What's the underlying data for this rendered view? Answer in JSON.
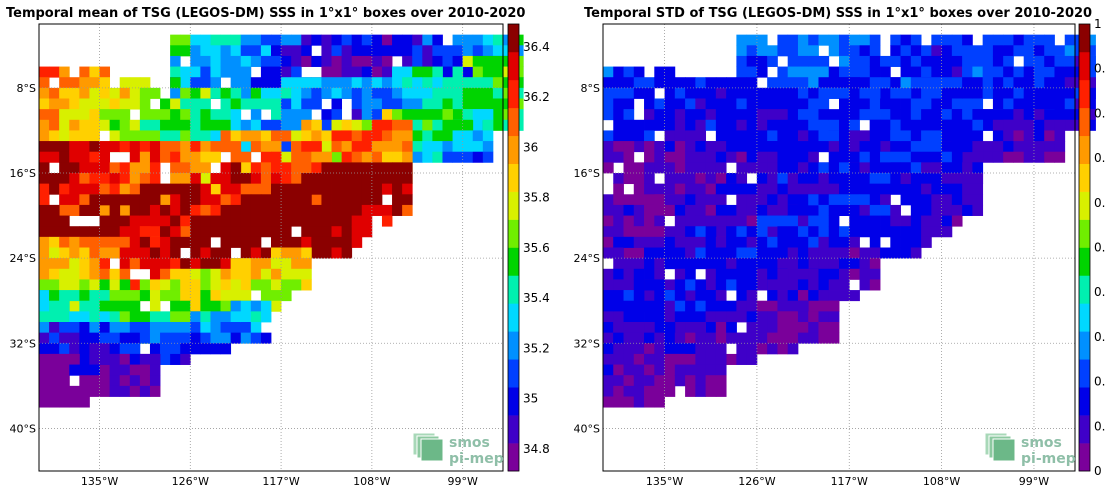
{
  "chart_data": [
    {
      "type": "heatmap",
      "title": "Temporal mean of TSG (LEGOS-DM) SSS in 1°x1° boxes over 2010-2020",
      "xticks": [
        "135°W",
        "126°W",
        "117°W",
        "108°W",
        "99°W"
      ],
      "yticks": [
        "8°S",
        "16°S",
        "24°S",
        "32°S",
        "40°S"
      ],
      "xlim": [
        -141,
        -95
      ],
      "ylim": [
        -44,
        -2
      ],
      "grid": true,
      "colorbar": {
        "ticks": [
          "34.8",
          "35",
          "35.2",
          "35.4",
          "35.6",
          "35.8",
          "36",
          "36.2",
          "36.4"
        ],
        "range": [
          34.8,
          36.6
        ],
        "colors": [
          "#7a009a",
          "#3f00c8",
          "#0000e8",
          "#0040ff",
          "#0090ff",
          "#00d8ff",
          "#00f0b0",
          "#00d400",
          "#70ee00",
          "#d8f000",
          "#ffd000",
          "#ff9a00",
          "#ff6000",
          "#ff2000",
          "#e00000",
          "#8b0000"
        ]
      },
      "bands": [
        {
          "lon": [
            -128,
            -105,
            -93
          ],
          "lat_top": [
            -4,
            -3,
            -4
          ],
          "lat_bot": [
            -8,
            -9,
            -8
          ],
          "values_w_to_e": [
            35.5,
            35.3,
            35.0,
            34.95,
            35.1,
            35.4
          ]
        },
        {
          "lon": [
            -141,
            -124,
            -106,
            -93
          ],
          "lat_top": [
            -6,
            -8.5,
            -7,
            -5
          ],
          "lat_bot": [
            -14,
            -14,
            -12,
            -11
          ],
          "values_w_to_e": [
            36.15,
            35.85,
            35.6,
            35.35,
            35.2,
            35.5,
            35.75
          ]
        },
        {
          "lon": [
            -141,
            -124,
            -107,
            -96
          ],
          "lat_top": [
            -14,
            -13,
            -11,
            -10
          ],
          "lat_bot": [
            -20,
            -18.5,
            -15,
            -14
          ],
          "values_w_to_e": [
            36.5,
            36.3,
            36.1,
            36.0,
            35.9,
            35.6,
            35.4
          ]
        },
        {
          "lon": [
            -141,
            -126,
            -113,
            -104
          ],
          "lat_top": [
            -20,
            -17,
            -13,
            -11
          ],
          "lat_bot": [
            -24,
            -22,
            -18,
            -16
          ],
          "values_w_to_e": [
            36.7,
            36.6,
            36.4,
            36.3,
            36.2,
            36.1
          ]
        },
        {
          "lon": [
            -141,
            -126,
            -110,
            -104
          ],
          "lat_top": [
            -23,
            -21,
            -15,
            -15
          ],
          "lat_bot": [
            -28.5,
            -26.5,
            -23,
            -19
          ],
          "values_w_to_e": [
            35.9,
            36.2,
            36.6,
            36.7,
            36.7,
            36.5
          ]
        },
        {
          "lon": [
            -141,
            -128,
            -118,
            -114
          ],
          "lat_top": [
            -27.5,
            -26,
            -24,
            -23
          ],
          "lat_bot": [
            -32.5,
            -31.5,
            -28.5,
            -26
          ],
          "values_w_to_e": [
            35.4,
            35.6,
            35.8,
            35.9,
            36.0
          ]
        },
        {
          "lon": [
            -141,
            -126,
            -118
          ],
          "lat_top": [
            -31,
            -30,
            -28
          ],
          "lat_bot": [
            -35.5,
            -33,
            -31
          ],
          "values_w_to_e": [
            35.0,
            35.1,
            35.3,
            35.4
          ]
        },
        {
          "lon": [
            -141,
            -129
          ],
          "lat_top": [
            -34,
            -33
          ],
          "lat_bot": [
            -38,
            -36
          ],
          "values_w_to_e": [
            34.85,
            34.95,
            35.0
          ]
        }
      ]
    },
    {
      "type": "heatmap",
      "title": "Temporal STD of TSG (LEGOS-DM) SSS in 1°x1° boxes over 2010-2020",
      "xticks": [
        "135°W",
        "126°W",
        "117°W",
        "108°W",
        "99°W"
      ],
      "yticks": [
        "8°S",
        "16°S",
        "24°S",
        "32°S",
        "40°S"
      ],
      "xlim": [
        -141,
        -95
      ],
      "ylim": [
        -44,
        -2
      ],
      "grid": true,
      "colorbar": {
        "ticks": [
          "0",
          "0.",
          "0.",
          "0.",
          "0.",
          "0.",
          "0.",
          "0.",
          "0.",
          "0.",
          "1"
        ],
        "range": [
          0,
          1
        ],
        "colors": [
          "#7a009a",
          "#3f00c8",
          "#0000e8",
          "#0040ff",
          "#0090ff",
          "#00d8ff",
          "#00f0b0",
          "#00d400",
          "#70ee00",
          "#d8f000",
          "#ffd000",
          "#ff9a00",
          "#ff6000",
          "#ff2000",
          "#e00000",
          "#8b0000"
        ]
      },
      "bands": [
        {
          "lon": [
            -128,
            -105,
            -93
          ],
          "lat_top": [
            -4,
            -3,
            -4
          ],
          "lat_bot": [
            -8,
            -9,
            -8
          ],
          "values_w_to_e": [
            0.2,
            0.25,
            0.2,
            0.15,
            0.2,
            0.25
          ]
        },
        {
          "lon": [
            -141,
            -124,
            -106,
            -93
          ],
          "lat_top": [
            -6,
            -8.5,
            -7,
            -5
          ],
          "lat_bot": [
            -14,
            -14,
            -12,
            -11
          ],
          "values_w_to_e": [
            0.2,
            0.15,
            0.15,
            0.18,
            0.2,
            0.18,
            0.15
          ]
        },
        {
          "lon": [
            -141,
            -124,
            -107,
            -96
          ],
          "lat_top": [
            -14,
            -13,
            -11,
            -10
          ],
          "lat_bot": [
            -20,
            -18.5,
            -15,
            -14
          ],
          "values_w_to_e": [
            0.05,
            0.08,
            0.1,
            0.15,
            0.15,
            0.12,
            0.1
          ]
        },
        {
          "lon": [
            -141,
            -126,
            -113,
            -104
          ],
          "lat_top": [
            -20,
            -17,
            -13,
            -11
          ],
          "lat_bot": [
            -24,
            -22,
            -18,
            -16
          ],
          "values_w_to_e": [
            0.06,
            0.08,
            0.12,
            0.15,
            0.18,
            0.15
          ]
        },
        {
          "lon": [
            -141,
            -126,
            -110,
            -104
          ],
          "lat_top": [
            -23,
            -21,
            -15,
            -15
          ],
          "lat_bot": [
            -28.5,
            -26.5,
            -23,
            -19
          ],
          "values_w_to_e": [
            0.1,
            0.14,
            0.16,
            0.16,
            0.14,
            0.12
          ]
        },
        {
          "lon": [
            -141,
            -128,
            -118,
            -114
          ],
          "lat_top": [
            -27.5,
            -26,
            -24,
            -23
          ],
          "lat_bot": [
            -32.5,
            -31.5,
            -28.5,
            -26
          ],
          "values_w_to_e": [
            0.15,
            0.16,
            0.12,
            0.1,
            0.08
          ]
        },
        {
          "lon": [
            -141,
            -126,
            -118
          ],
          "lat_top": [
            -31,
            -30,
            -28
          ],
          "lat_bot": [
            -35.5,
            -33,
            -31
          ],
          "values_w_to_e": [
            0.12,
            0.1,
            0.08,
            0.06
          ]
        },
        {
          "lon": [
            -141,
            -129
          ],
          "lat_top": [
            -34,
            -33
          ],
          "lat_bot": [
            -38,
            -36
          ],
          "values_w_to_e": [
            0.08,
            0.06,
            0.05
          ]
        }
      ]
    }
  ],
  "logo": {
    "line1": "smos",
    "line2": "pi-mep"
  }
}
